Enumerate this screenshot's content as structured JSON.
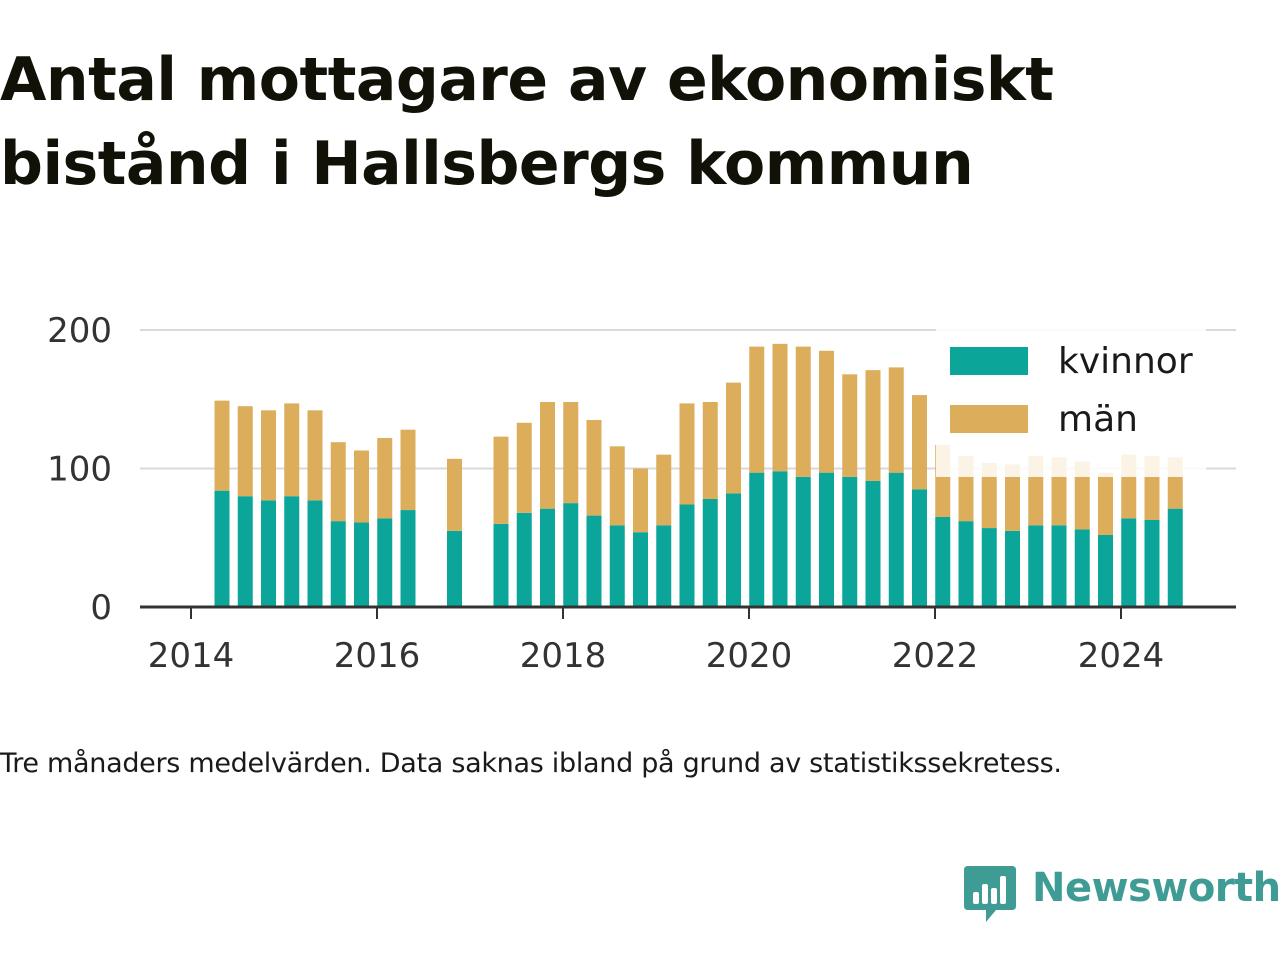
{
  "title": "Antal mottagare av ekonomiskt bistånd i Hallsbergs kommun",
  "note": "Tre månaders medelvärden. Data saknas ibland på grund av statistikssekretess.",
  "brand": {
    "name": "Newsworthy",
    "color": "#3f9c94",
    "icon": "newsworthy-logo-icon"
  },
  "colors": {
    "kvinnor": "#0ba59a",
    "man": "#dcad5a",
    "grid": "#d9d9d9",
    "axis": "#333333"
  },
  "chart_data": {
    "type": "bar",
    "stacked": true,
    "title": "Antal mottagare av ekonomiskt bistånd i Hallsbergs kommun",
    "xlabel": "",
    "ylabel": "",
    "ylim": [
      0,
      200
    ],
    "yticks": [
      0,
      100,
      200
    ],
    "xticks": [
      "2014",
      "2016",
      "2018",
      "2020",
      "2022",
      "2024"
    ],
    "grid": true,
    "legend": "top-right",
    "x": [
      "2014-05",
      "2014-08",
      "2014-11",
      "2015-02",
      "2015-05",
      "2015-08",
      "2015-11",
      "2016-02",
      "2016-05",
      "2016-11",
      "2017-05",
      "2017-08",
      "2017-11",
      "2018-02",
      "2018-05",
      "2018-08",
      "2018-11",
      "2019-02",
      "2019-05",
      "2019-08",
      "2019-11",
      "2020-02",
      "2020-05",
      "2020-08",
      "2020-11",
      "2021-02",
      "2021-05",
      "2021-08",
      "2021-11",
      "2022-02",
      "2022-05",
      "2022-08",
      "2022-11",
      "2023-02",
      "2023-05",
      "2023-08",
      "2023-11",
      "2024-02",
      "2024-05",
      "2024-08"
    ],
    "series": [
      {
        "name": "kvinnor",
        "color": "#0ba59a",
        "values": [
          84,
          80,
          77,
          80,
          77,
          62,
          61,
          64,
          70,
          55,
          60,
          68,
          71,
          75,
          66,
          59,
          54,
          59,
          74,
          78,
          82,
          97,
          98,
          94,
          97,
          94,
          91,
          97,
          85,
          65,
          62,
          57,
          55,
          59,
          59,
          56,
          52,
          64,
          63,
          71
        ]
      },
      {
        "name": "män",
        "color": "#dcad5a",
        "values": [
          65,
          65,
          65,
          67,
          65,
          57,
          52,
          58,
          58,
          52,
          63,
          65,
          77,
          73,
          69,
          57,
          46,
          51,
          73,
          70,
          80,
          91,
          92,
          94,
          88,
          74,
          80,
          76,
          68,
          52,
          47,
          47,
          48,
          50,
          49,
          49,
          45,
          46,
          46,
          37
        ]
      }
    ]
  }
}
